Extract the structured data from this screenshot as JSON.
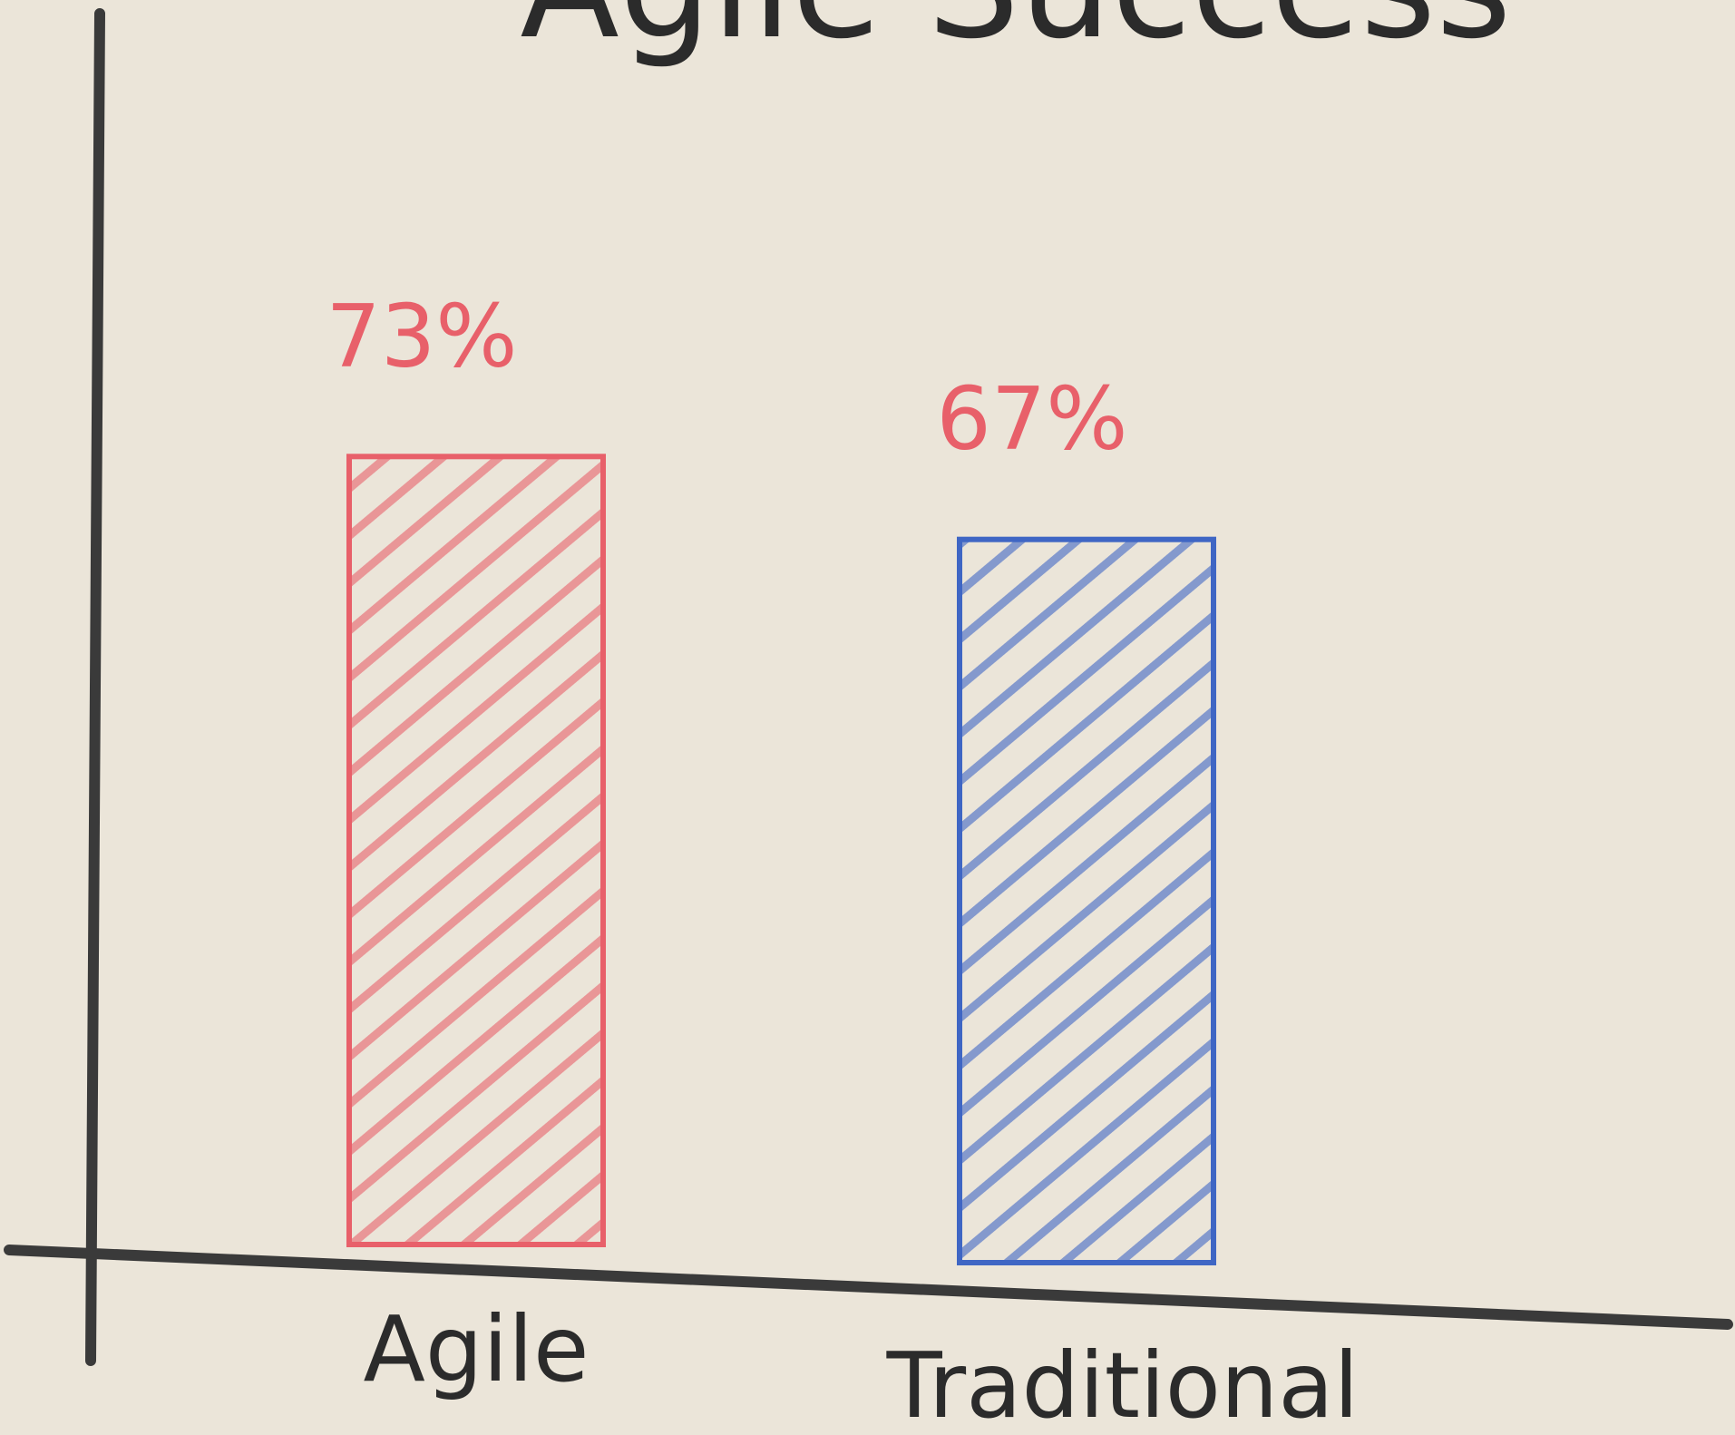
{
  "chart_data": {
    "type": "bar",
    "title": "Agile Success",
    "categories": [
      "Agile",
      "Traditional"
    ],
    "values": [
      73,
      67
    ],
    "value_labels": [
      "73%",
      "67%"
    ],
    "colors": [
      "#e8606a",
      "#3f66c4"
    ]
  }
}
